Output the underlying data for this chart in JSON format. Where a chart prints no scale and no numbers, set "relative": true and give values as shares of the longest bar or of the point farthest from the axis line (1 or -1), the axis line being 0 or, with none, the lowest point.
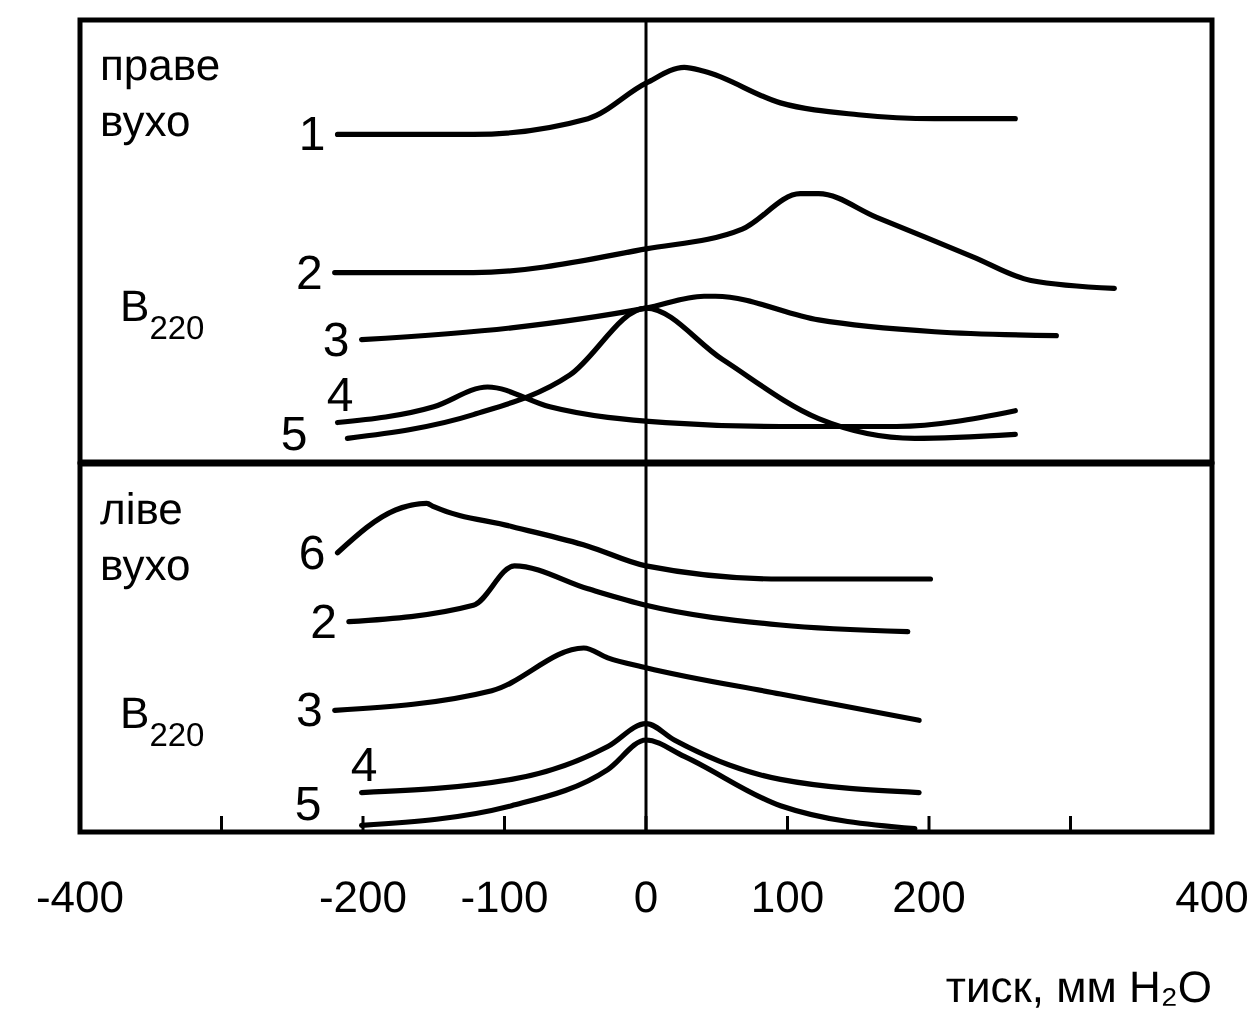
{
  "chart_data": [
    {
      "type": "line",
      "relative": true,
      "xlim": [
        -400,
        400
      ],
      "tick_labels": false,
      "annotations": [
        "праве вухо",
        "B$_{220}$"
      ],
      "ref_lines": [
        {
          "axis": "x",
          "value": 0
        }
      ],
      "series": [
        {
          "name": "1",
          "color": "#000000",
          "x": [
            -218,
            -122,
            -41,
            0,
            27,
            41,
            95,
            150,
            204,
            261
          ],
          "values": [
            0.83,
            0.83,
            0.87,
            0.96,
            1,
            0.99,
            0.91,
            0.88,
            0.87,
            0.87
          ]
        },
        {
          "name": "2",
          "color": "#000000",
          "x": [
            -220,
            -122,
            0,
            68,
            109,
            122,
            163,
            231,
            272,
            331
          ],
          "values": [
            0.48,
            0.48,
            0.54,
            0.59,
            0.68,
            0.68,
            0.62,
            0.52,
            0.46,
            0.44
          ]
        },
        {
          "name": "3",
          "color": "#000000",
          "x": [
            -201,
            -95,
            0,
            41,
            49,
            122,
            204,
            290
          ],
          "values": [
            0.31,
            0.34,
            0.39,
            0.42,
            0.42,
            0.36,
            0.33,
            0.32
          ]
        },
        {
          "name": "4",
          "color": "#000000",
          "x": [
            -218,
            -150,
            -112,
            -68,
            14,
            95,
            177,
            261
          ],
          "values": [
            0.1,
            0.14,
            0.19,
            0.14,
            0.1,
            0.09,
            0.09,
            0.13
          ]
        },
        {
          "name": "5",
          "color": "#000000",
          "x": [
            -211,
            -122,
            -54,
            0,
            54,
            122,
            190,
            261
          ],
          "values": [
            0.06,
            0.12,
            0.22,
            0.39,
            0.26,
            0.11,
            0.06,
            0.07
          ]
        }
      ]
    },
    {
      "type": "line",
      "relative": true,
      "xlim": [
        -400,
        400
      ],
      "tick_labels": "x",
      "xticks": [
        -400,
        {
          "value": -300,
          "label": null
        },
        -200,
        -100,
        0,
        100,
        200,
        {
          "value": 300,
          "label": null
        },
        400
      ],
      "xlabel": "тиск, мм H₂O",
      "annotations": [
        "ліве вухо",
        "B$_{220}$"
      ],
      "ref_lines": [
        {
          "axis": "x",
          "value": 0
        }
      ],
      "series": [
        {
          "name": "6",
          "color": "#000000",
          "x": [
            -218,
            -177,
            -155,
            -150,
            -95,
            -41,
            0,
            95,
            201
          ],
          "values": [
            0.85,
            0.98,
            1,
            0.99,
            0.93,
            0.87,
            0.81,
            0.77,
            0.77
          ]
        },
        {
          "name": "2",
          "color": "#000000",
          "x": [
            -210,
            -122,
            -93,
            -41,
            0,
            95,
            185
          ],
          "values": [
            0.64,
            0.69,
            0.81,
            0.74,
            0.69,
            0.63,
            0.61
          ]
        },
        {
          "name": "3",
          "color": "#000000",
          "x": [
            -220,
            -109,
            -44,
            -27,
            0,
            95,
            193
          ],
          "values": [
            0.37,
            0.43,
            0.56,
            0.53,
            0.5,
            0.42,
            0.34
          ]
        },
        {
          "name": "4",
          "color": "#000000",
          "x": [
            -201,
            -95,
            -27,
            0,
            20,
            95,
            193
          ],
          "values": [
            0.12,
            0.16,
            0.26,
            0.33,
            0.28,
            0.16,
            0.12
          ]
        },
        {
          "name": "5",
          "color": "#000000",
          "x": [
            -201,
            -95,
            -27,
            0,
            27,
            95,
            190
          ],
          "values": [
            0.02,
            0.08,
            0.19,
            0.28,
            0.23,
            0.08,
            0.01
          ]
        }
      ]
    }
  ]
}
